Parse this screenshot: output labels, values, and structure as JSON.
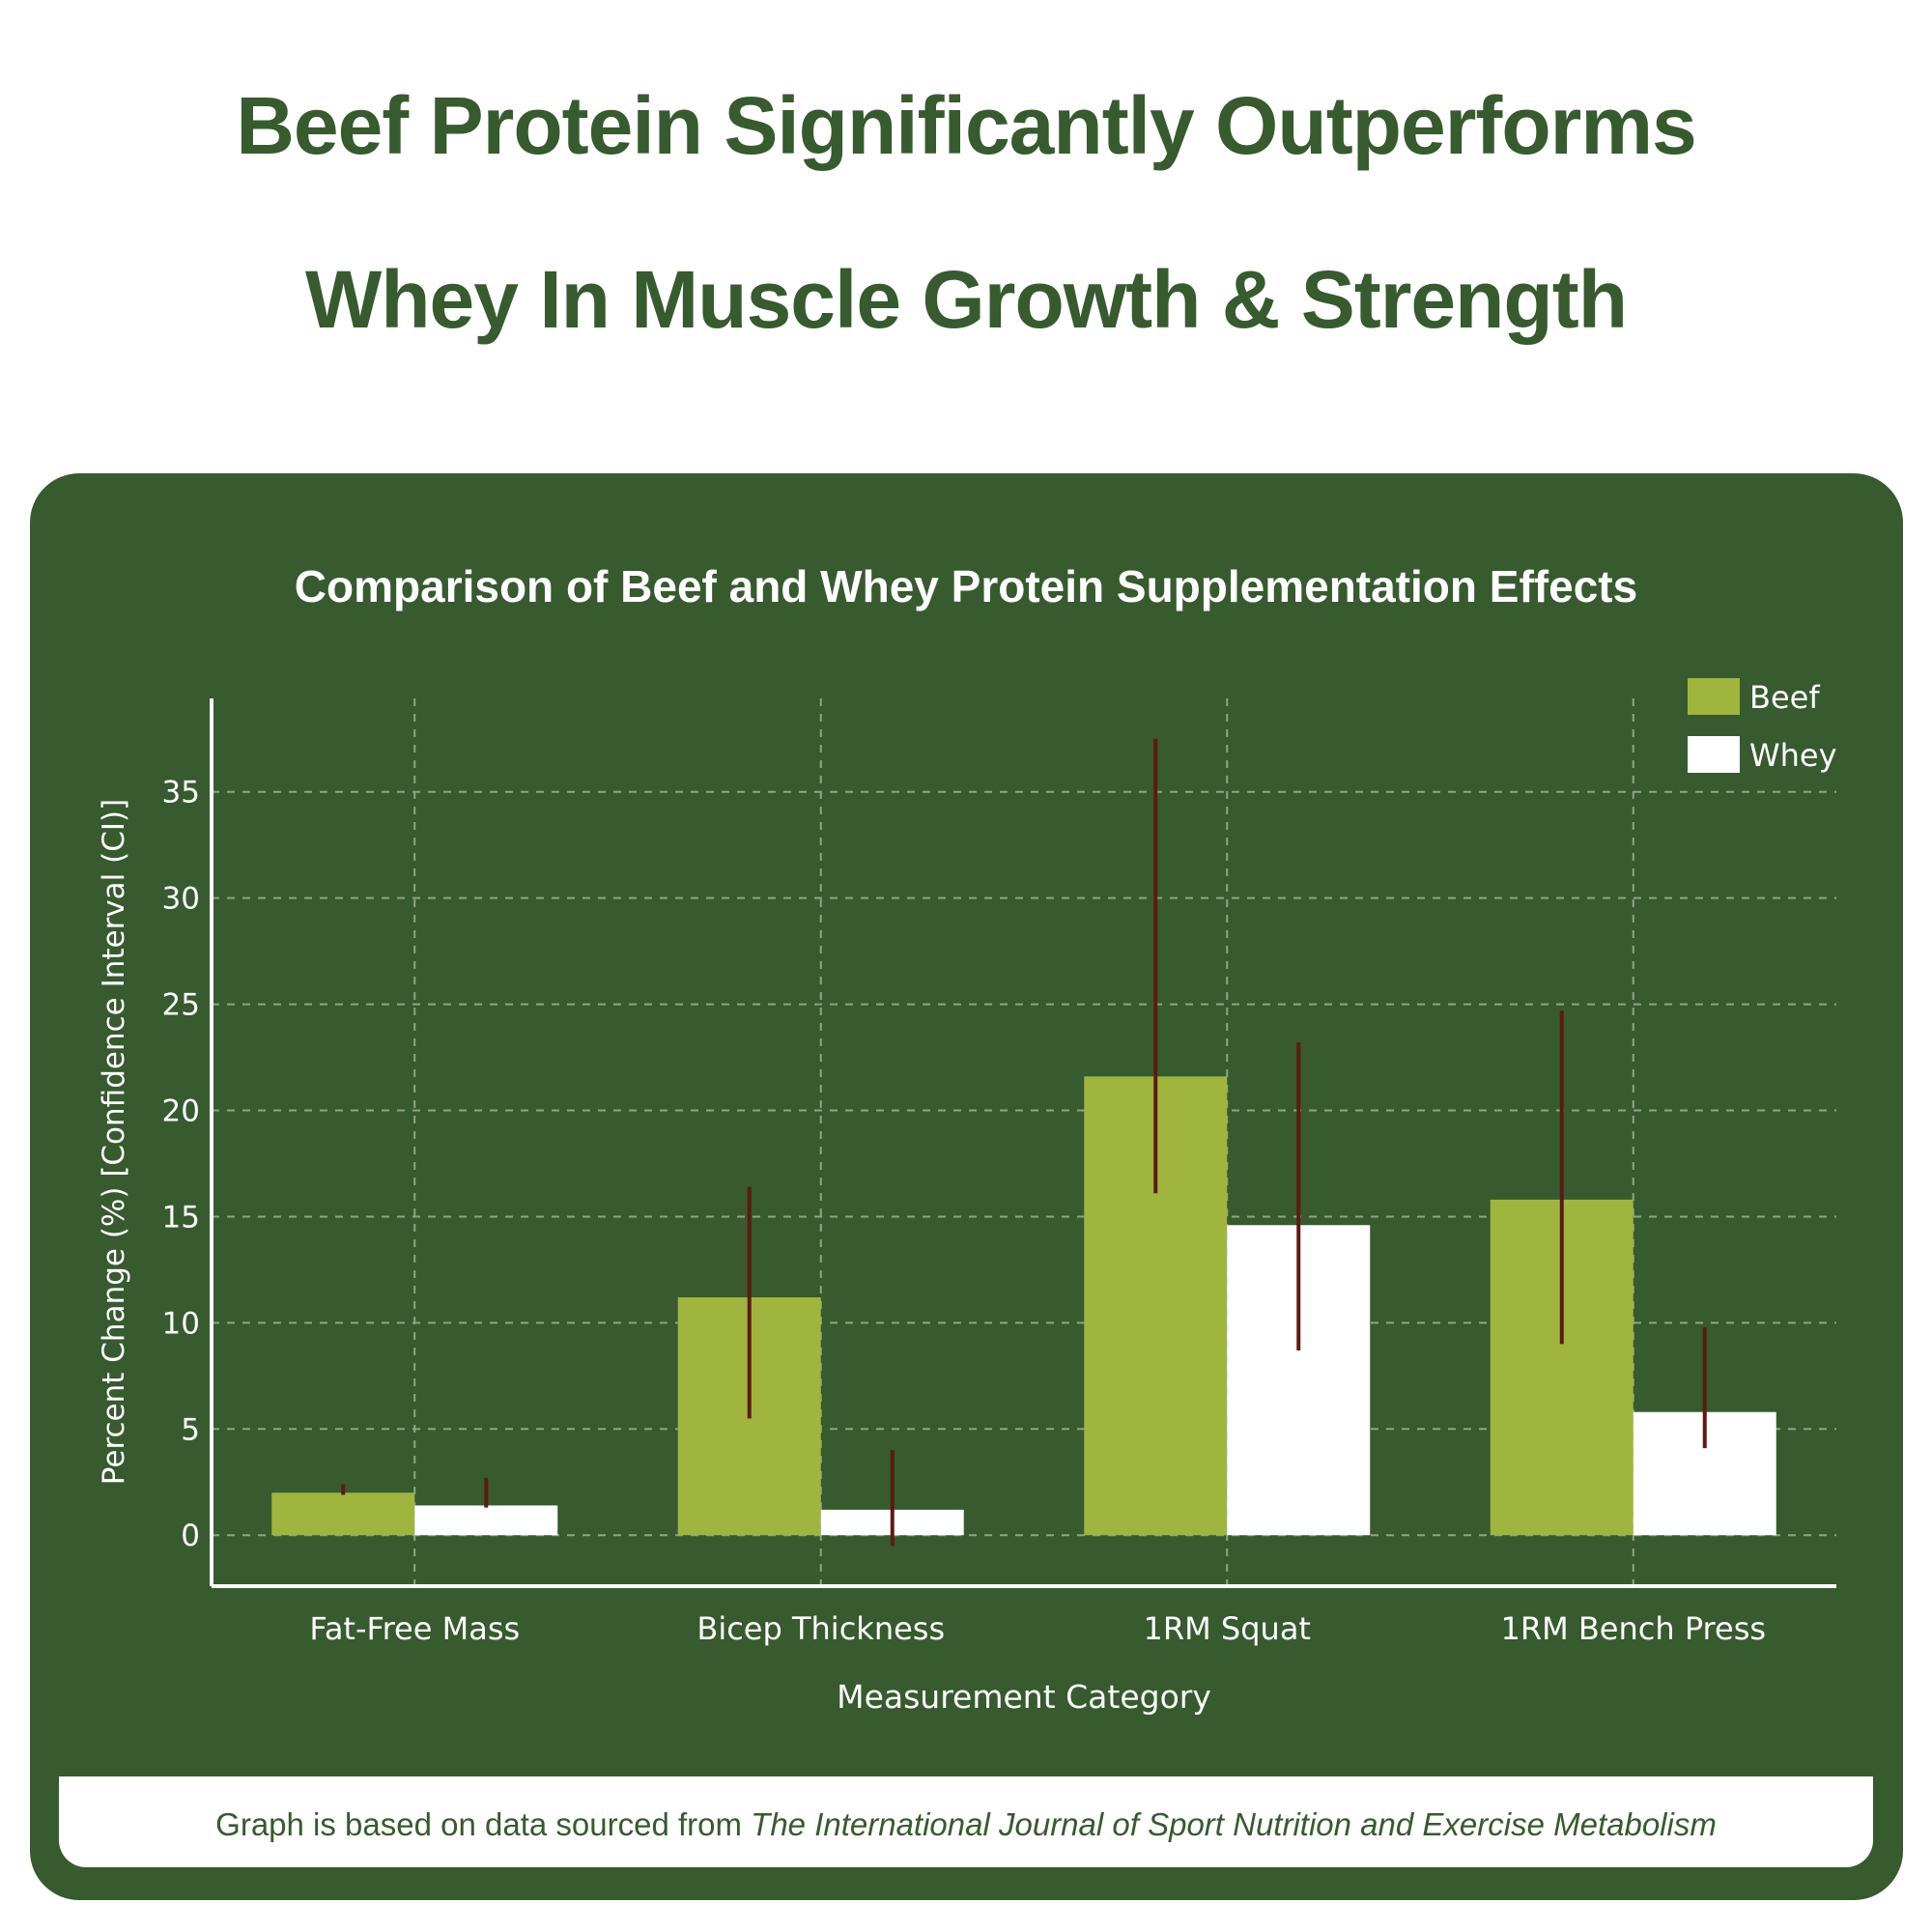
{
  "headline": {
    "line1": "Beef Protein Significantly Outperforms",
    "line2": "Whey In Muscle Growth & Strength"
  },
  "footer": {
    "prefix": "Graph is based on data sourced from ",
    "source": "The International Journal of Sport Nutrition and Exercise Metabolism"
  },
  "colors": {
    "background": "#375a2f",
    "beef": "#9fb53e",
    "whey": "#ffffff",
    "error_bar": "#5c1a12",
    "text": "#ffffff"
  },
  "chart_data": {
    "type": "bar",
    "title": "Comparison of Beef and Whey Protein Supplementation Effects",
    "xlabel": "Measurement Category",
    "ylabel": "Percent Change (%) [Confidence Interval (CI)]",
    "categories": [
      "Fat-Free Mass",
      "Bicep Thickness",
      "1RM Squat",
      "1RM Bench Press"
    ],
    "yticks": [
      0,
      5,
      10,
      15,
      20,
      25,
      30,
      35
    ],
    "ylim": [
      -2.4,
      39.4
    ],
    "grid": true,
    "legend_position": "top-right",
    "series": [
      {
        "name": "Beef",
        "values": [
          2.0,
          11.2,
          21.6,
          15.8
        ],
        "ci_low": [
          1.9,
          5.5,
          16.1,
          9.0
        ],
        "ci_high": [
          2.4,
          16.4,
          37.5,
          24.7
        ]
      },
      {
        "name": "Whey",
        "values": [
          1.4,
          1.2,
          14.6,
          5.8
        ],
        "ci_low": [
          1.3,
          -0.5,
          8.7,
          4.1
        ],
        "ci_high": [
          2.7,
          4.0,
          23.2,
          9.8
        ]
      }
    ]
  }
}
